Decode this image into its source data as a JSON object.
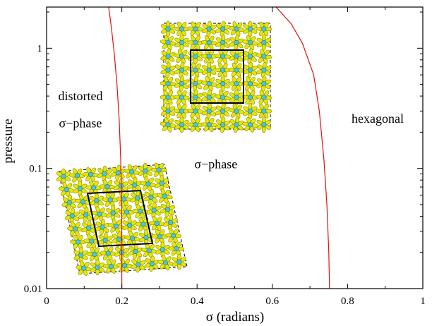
{
  "chart_data": {
    "type": "line",
    "xlabel": "σ (radians)",
    "ylabel": "pressure",
    "xlim": [
      0,
      1
    ],
    "ylim": [
      0.01,
      2.2
    ],
    "y_scale": "log",
    "x_ticks": [
      0,
      0.2,
      0.4,
      0.6,
      0.8,
      1
    ],
    "x_tick_labels": [
      "0",
      "0.2",
      "0.4",
      "0.6",
      "0.8",
      "1"
    ],
    "y_ticks": [
      0.01,
      0.1,
      1
    ],
    "y_tick_labels": [
      "0.01",
      "0.1",
      "1"
    ],
    "grid": false,
    "line_color": "#e01010",
    "series": [
      {
        "points": [
          [
            0.165,
            2.2
          ],
          [
            0.172,
            1.5
          ],
          [
            0.18,
            0.9
          ],
          [
            0.187,
            0.5
          ],
          [
            0.193,
            0.25
          ],
          [
            0.197,
            0.12
          ],
          [
            0.199,
            0.06
          ],
          [
            0.2,
            0.03
          ],
          [
            0.2,
            0.01
          ]
        ]
      },
      {
        "points": [
          [
            0.61,
            2.2
          ],
          [
            0.65,
            1.6
          ],
          [
            0.68,
            1.1
          ],
          [
            0.71,
            0.6
          ],
          [
            0.725,
            0.3
          ],
          [
            0.737,
            0.12
          ],
          [
            0.745,
            0.05
          ],
          [
            0.75,
            0.02
          ],
          [
            0.752,
            0.01
          ]
        ]
      }
    ],
    "region_labels": [
      {
        "text": "distorted",
        "x": 0.09,
        "y": 0.37
      },
      {
        "text": "σ−phase",
        "x": 0.09,
        "y": 0.22
      },
      {
        "text": "σ−phase",
        "x": 0.45,
        "y": 0.1
      },
      {
        "text": "hexagonal",
        "x": 0.88,
        "y": 0.24
      }
    ],
    "insets": [
      {
        "name": "sigma-phase-lattice",
        "colors": {
          "atom_center": "#4fc3e0",
          "atom_arms": "#e6e600",
          "atom_arm_edge": "#8a8a00"
        }
      },
      {
        "name": "distorted-sigma-phase-lattice",
        "colors": {
          "atom_center": "#4fc3e0",
          "atom_arms": "#e6e600",
          "atom_arm_edge": "#8a8a00"
        }
      }
    ]
  }
}
